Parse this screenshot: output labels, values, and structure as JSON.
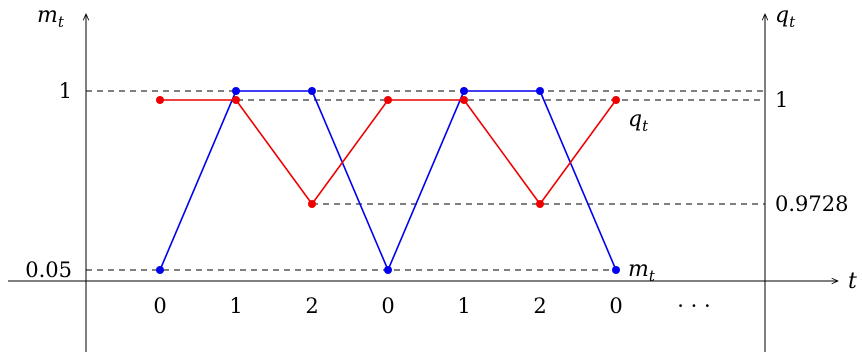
{
  "chart_data": {
    "type": "line",
    "x": [
      "0",
      "1",
      "2",
      "0",
      "1",
      "2",
      "0"
    ],
    "x_extra_label": "· · ·",
    "left_axis": {
      "label": "m",
      "label_sub": "t",
      "ticks": [
        {
          "value": 1,
          "label": "1"
        },
        {
          "value": 0.05,
          "label": "0.05"
        }
      ]
    },
    "right_axis": {
      "label": "q",
      "label_sub": "t",
      "ticks": [
        {
          "value": 1,
          "label": "1"
        },
        {
          "value": 0.9728,
          "label": "0.9728"
        }
      ]
    },
    "x_axis": {
      "label": "t"
    },
    "series": [
      {
        "name": "m",
        "name_sub": "t",
        "axis": "left",
        "color": "#0000ee",
        "values": [
          0.05,
          1,
          1,
          0.05,
          1,
          1,
          0.05
        ]
      },
      {
        "name": "q",
        "name_sub": "t",
        "axis": "right",
        "color": "#ee0000",
        "values": [
          1,
          1,
          0.9728,
          1,
          1,
          0.9728,
          1
        ]
      }
    ],
    "guides": "dashed",
    "grid": false,
    "legend": "inline labels at series ends"
  }
}
